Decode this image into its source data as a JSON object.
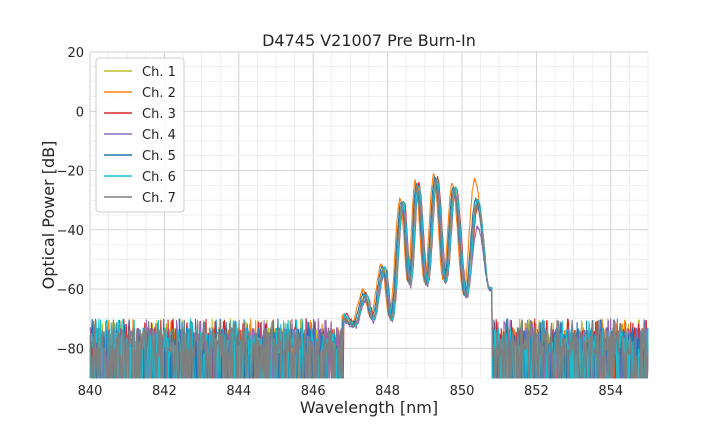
{
  "chart_data": {
    "type": "line",
    "title": "D4745 V21007 Pre Burn-In",
    "xlabel": "Wavelength [nm]",
    "ylabel": "Optical Power [dB]",
    "xlim": [
      840,
      855
    ],
    "ylim": [
      -90,
      20
    ],
    "xticks": [
      840,
      842,
      844,
      846,
      848,
      850,
      852,
      854
    ],
    "yticks": [
      20,
      0,
      -20,
      -40,
      -60,
      -80
    ],
    "xtick_labels": [
      "840",
      "842",
      "844",
      "846",
      "848",
      "850",
      "852",
      "854"
    ],
    "ytick_labels": [
      "20",
      "0",
      "−20",
      "−40",
      "−60",
      "−80"
    ],
    "grid": true,
    "legend_position": "top-left",
    "noise_floor": {
      "mean": -78,
      "low": -90,
      "high": -72,
      "x_ranges": [
        [
          840,
          846.8
        ],
        [
          850.8,
          855
        ]
      ]
    },
    "peaks": [
      {
        "x": 846.8,
        "y": -69
      },
      {
        "x": 847.4,
        "y": -62
      },
      {
        "x": 847.9,
        "y": -53
      },
      {
        "x": 848.4,
        "y": -31
      },
      {
        "x": 848.8,
        "y": -25
      },
      {
        "x": 849.3,
        "y": -23
      },
      {
        "x": 849.8,
        "y": -26
      },
      {
        "x": 850.4,
        "y": -29
      }
    ],
    "troughs": [
      {
        "x": 847.1,
        "y": -72
      },
      {
        "x": 847.6,
        "y": -70
      },
      {
        "x": 848.1,
        "y": -70
      },
      {
        "x": 848.6,
        "y": -58
      },
      {
        "x": 849.05,
        "y": -58
      },
      {
        "x": 849.55,
        "y": -57
      },
      {
        "x": 850.1,
        "y": -62
      }
    ],
    "series": [
      {
        "name": "Ch. 1",
        "color": "#bcbd22",
        "offset_x": 0.0,
        "offset_y": 0,
        "last_peak": -30
      },
      {
        "name": "Ch. 2",
        "color": "#ff7f0e",
        "offset_x": -0.06,
        "offset_y": 1.5,
        "last_peak": -23
      },
      {
        "name": "Ch. 3",
        "color": "#d62728",
        "offset_x": 0.04,
        "offset_y": 0.5,
        "last_peak": -31
      },
      {
        "name": "Ch. 4",
        "color": "#9467bd",
        "offset_x": 0.02,
        "offset_y": -2,
        "last_peak": -39
      },
      {
        "name": "Ch. 5",
        "color": "#1f77b4",
        "offset_x": -0.03,
        "offset_y": 0.5,
        "last_peak": -30
      },
      {
        "name": "Ch. 6",
        "color": "#17becf",
        "offset_x": 0.03,
        "offset_y": 0,
        "last_peak": -30
      },
      {
        "name": "Ch. 7",
        "color": "#7f7f7f",
        "offset_x": -0.01,
        "offset_y": -0.5,
        "last_peak": -32
      }
    ]
  }
}
